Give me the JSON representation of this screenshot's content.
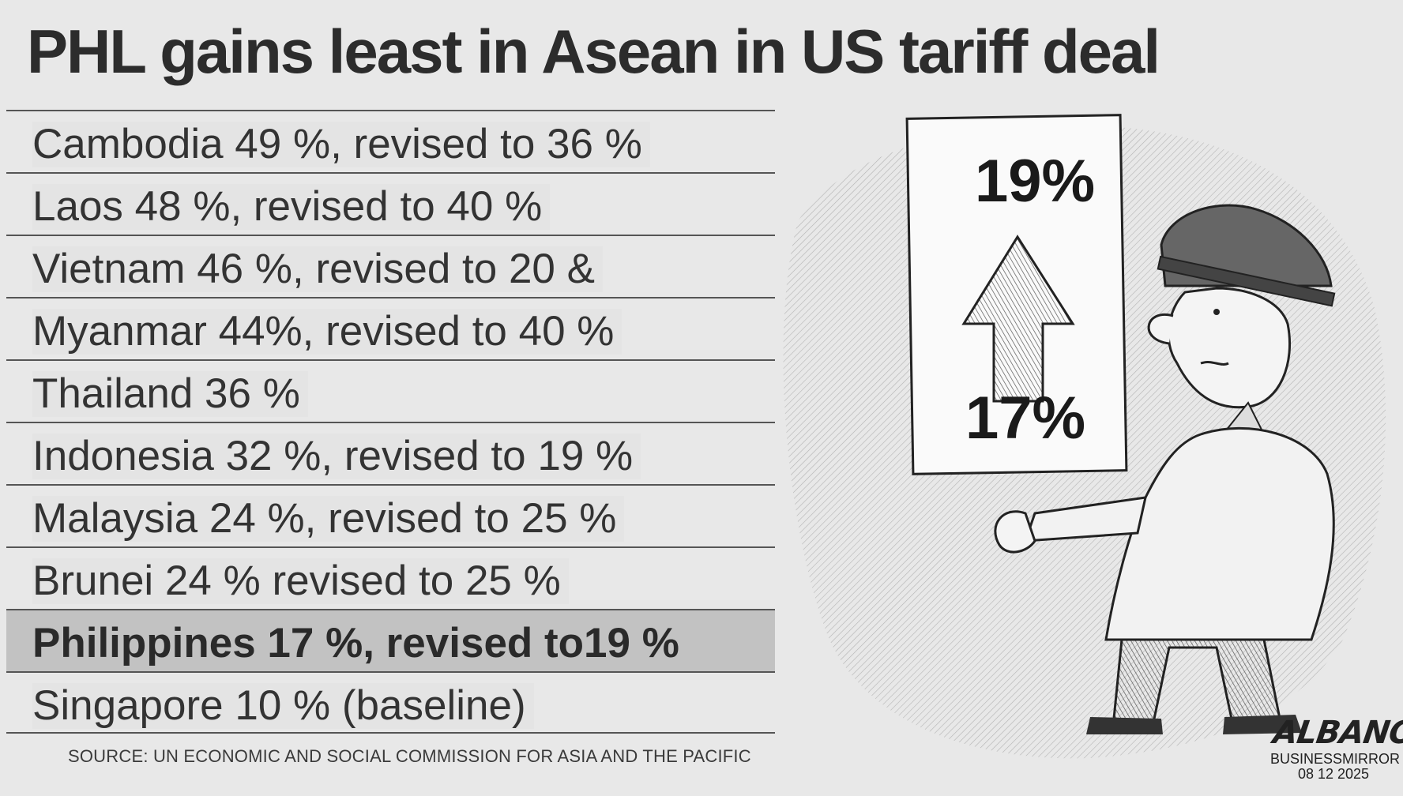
{
  "headline": "PHL gains least in Asean in US tariff deal",
  "rows": [
    {
      "text": "Cambodia 49 %, revised to 36 %",
      "highlight": false
    },
    {
      "text": "Laos 48 %, revised to 40 %",
      "highlight": false
    },
    {
      "text": "Vietnam 46 %, revised to 20 &",
      "highlight": false
    },
    {
      "text": "Myanmar 44%, revised to 40 %",
      "highlight": false
    },
    {
      "text": "Thailand 36 %",
      "highlight": false
    },
    {
      "text": "Indonesia 32 %, revised to 19 %",
      "highlight": false
    },
    {
      "text": "Malaysia 24 %, revised to 25 %",
      "highlight": false
    },
    {
      "text": "Brunei 24 %  revised to 25 %",
      "highlight": false
    },
    {
      "text": "Philippines 17 %, revised to19 %",
      "highlight": true
    },
    {
      "text": "Singapore 10 % (baseline)",
      "highlight": false
    }
  ],
  "source": "SOURCE: UN  ECONOMIC AND SOCIAL COMMISSION FOR ASIA AND THE PACIFIC",
  "cartoon": {
    "sign_top": "19%",
    "sign_bottom": "17%",
    "arrow_icon": "up-arrow-icon",
    "artist_signature": "ALBANO",
    "publication": "BUSINESSMIRROR",
    "date": "08 12 2025"
  },
  "colors": {
    "background": "#e8e8e8",
    "highlight_row": "#c2c2c2",
    "text": "#333333"
  }
}
